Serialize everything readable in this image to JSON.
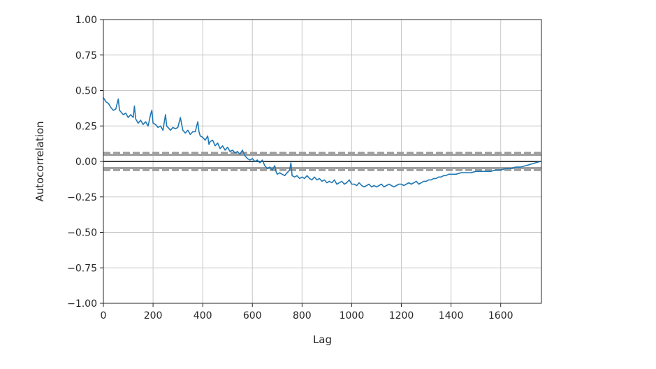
{
  "chart_data": {
    "type": "line",
    "title": "",
    "xlabel": "Lag",
    "ylabel": "Autocorrelation",
    "xlim": [
      0,
      1764
    ],
    "ylim": [
      -1.0,
      1.0
    ],
    "grid": true,
    "xticks": [
      0,
      200,
      400,
      600,
      800,
      1000,
      1200,
      1400,
      1600
    ],
    "xtick_labels": [
      "0",
      "200",
      "400",
      "600",
      "800",
      "1000",
      "1200",
      "1400",
      "1600"
    ],
    "yticks": [
      1.0,
      0.75,
      0.5,
      0.25,
      0.0,
      -0.25,
      -0.5,
      -0.75,
      -1.0
    ],
    "ytick_labels": [
      "1.00",
      "0.75",
      "0.50",
      "0.25",
      "0.00",
      "−0.25",
      "−0.50",
      "−0.75",
      "−1.00"
    ],
    "reference_lines": {
      "zero": 0.0,
      "confidence_95": [
        0.047,
        -0.047
      ],
      "confidence_99": [
        0.061,
        -0.061
      ]
    },
    "colors": {
      "series": "#1f77b4",
      "zero_line": "#444444",
      "confidence": "#a0a0a0",
      "grid": "#c8c8c8",
      "axes": "#262626"
    },
    "series": [
      {
        "values": [
          [
            0,
            0.45
          ],
          [
            10,
            0.42
          ],
          [
            20,
            0.41
          ],
          [
            30,
            0.38
          ],
          [
            40,
            0.36
          ],
          [
            50,
            0.37
          ],
          [
            60,
            0.44
          ],
          [
            65,
            0.36
          ],
          [
            70,
            0.35
          ],
          [
            80,
            0.33
          ],
          [
            90,
            0.34
          ],
          [
            100,
            0.31
          ],
          [
            110,
            0.33
          ],
          [
            120,
            0.31
          ],
          [
            125,
            0.39
          ],
          [
            130,
            0.3
          ],
          [
            140,
            0.27
          ],
          [
            150,
            0.29
          ],
          [
            160,
            0.26
          ],
          [
            170,
            0.28
          ],
          [
            180,
            0.25
          ],
          [
            190,
            0.33
          ],
          [
            195,
            0.36
          ],
          [
            200,
            0.27
          ],
          [
            210,
            0.26
          ],
          [
            220,
            0.24
          ],
          [
            230,
            0.25
          ],
          [
            240,
            0.22
          ],
          [
            250,
            0.33
          ],
          [
            255,
            0.25
          ],
          [
            260,
            0.24
          ],
          [
            270,
            0.22
          ],
          [
            280,
            0.24
          ],
          [
            290,
            0.23
          ],
          [
            300,
            0.24
          ],
          [
            310,
            0.31
          ],
          [
            320,
            0.22
          ],
          [
            330,
            0.2
          ],
          [
            340,
            0.22
          ],
          [
            350,
            0.19
          ],
          [
            360,
            0.21
          ],
          [
            370,
            0.21
          ],
          [
            380,
            0.28
          ],
          [
            385,
            0.21
          ],
          [
            390,
            0.18
          ],
          [
            400,
            0.17
          ],
          [
            410,
            0.15
          ],
          [
            420,
            0.18
          ],
          [
            425,
            0.12
          ],
          [
            430,
            0.14
          ],
          [
            440,
            0.15
          ],
          [
            450,
            0.11
          ],
          [
            460,
            0.13
          ],
          [
            470,
            0.09
          ],
          [
            480,
            0.11
          ],
          [
            490,
            0.08
          ],
          [
            500,
            0.1
          ],
          [
            510,
            0.07
          ],
          [
            520,
            0.08
          ],
          [
            530,
            0.06
          ],
          [
            540,
            0.07
          ],
          [
            550,
            0.05
          ],
          [
            560,
            0.08
          ],
          [
            570,
            0.04
          ],
          [
            580,
            0.02
          ],
          [
            590,
            0.01
          ],
          [
            600,
            0.02
          ],
          [
            610,
            0.0
          ],
          [
            620,
            0.01
          ],
          [
            630,
            -0.01
          ],
          [
            640,
            0.01
          ],
          [
            650,
            -0.03
          ],
          [
            660,
            -0.05
          ],
          [
            670,
            -0.04
          ],
          [
            680,
            -0.06
          ],
          [
            690,
            -0.03
          ],
          [
            695,
            -0.07
          ],
          [
            700,
            -0.09
          ],
          [
            710,
            -0.08
          ],
          [
            720,
            -0.09
          ],
          [
            730,
            -0.1
          ],
          [
            740,
            -0.08
          ],
          [
            750,
            -0.06
          ],
          [
            755,
            -0.01
          ],
          [
            760,
            -0.1
          ],
          [
            770,
            -0.11
          ],
          [
            780,
            -0.1
          ],
          [
            790,
            -0.12
          ],
          [
            800,
            -0.11
          ],
          [
            810,
            -0.12
          ],
          [
            820,
            -0.1
          ],
          [
            830,
            -0.12
          ],
          [
            840,
            -0.13
          ],
          [
            850,
            -0.11
          ],
          [
            860,
            -0.13
          ],
          [
            870,
            -0.12
          ],
          [
            880,
            -0.14
          ],
          [
            890,
            -0.13
          ],
          [
            900,
            -0.15
          ],
          [
            910,
            -0.14
          ],
          [
            920,
            -0.15
          ],
          [
            930,
            -0.13
          ],
          [
            940,
            -0.16
          ],
          [
            950,
            -0.15
          ],
          [
            960,
            -0.14
          ],
          [
            970,
            -0.16
          ],
          [
            980,
            -0.15
          ],
          [
            990,
            -0.13
          ],
          [
            1000,
            -0.16
          ],
          [
            1010,
            -0.16
          ],
          [
            1020,
            -0.17
          ],
          [
            1030,
            -0.15
          ],
          [
            1040,
            -0.17
          ],
          [
            1050,
            -0.18
          ],
          [
            1060,
            -0.17
          ],
          [
            1070,
            -0.16
          ],
          [
            1080,
            -0.18
          ],
          [
            1090,
            -0.17
          ],
          [
            1100,
            -0.18
          ],
          [
            1110,
            -0.17
          ],
          [
            1120,
            -0.16
          ],
          [
            1130,
            -0.18
          ],
          [
            1140,
            -0.17
          ],
          [
            1150,
            -0.16
          ],
          [
            1160,
            -0.17
          ],
          [
            1170,
            -0.18
          ],
          [
            1180,
            -0.17
          ],
          [
            1190,
            -0.16
          ],
          [
            1200,
            -0.16
          ],
          [
            1210,
            -0.17
          ],
          [
            1220,
            -0.16
          ],
          [
            1230,
            -0.15
          ],
          [
            1240,
            -0.16
          ],
          [
            1250,
            -0.15
          ],
          [
            1260,
            -0.14
          ],
          [
            1270,
            -0.16
          ],
          [
            1280,
            -0.15
          ],
          [
            1290,
            -0.14
          ],
          [
            1300,
            -0.14
          ],
          [
            1310,
            -0.13
          ],
          [
            1320,
            -0.13
          ],
          [
            1330,
            -0.12
          ],
          [
            1340,
            -0.12
          ],
          [
            1350,
            -0.11
          ],
          [
            1360,
            -0.11
          ],
          [
            1370,
            -0.1
          ],
          [
            1380,
            -0.1
          ],
          [
            1390,
            -0.09
          ],
          [
            1400,
            -0.09
          ],
          [
            1420,
            -0.09
          ],
          [
            1440,
            -0.08
          ],
          [
            1460,
            -0.08
          ],
          [
            1480,
            -0.08
          ],
          [
            1500,
            -0.07
          ],
          [
            1520,
            -0.07
          ],
          [
            1540,
            -0.07
          ],
          [
            1560,
            -0.07
          ],
          [
            1580,
            -0.06
          ],
          [
            1600,
            -0.06
          ],
          [
            1620,
            -0.05
          ],
          [
            1640,
            -0.05
          ],
          [
            1660,
            -0.04
          ],
          [
            1680,
            -0.04
          ],
          [
            1700,
            -0.03
          ],
          [
            1720,
            -0.02
          ],
          [
            1740,
            -0.01
          ],
          [
            1760,
            0.0
          ]
        ]
      }
    ]
  }
}
